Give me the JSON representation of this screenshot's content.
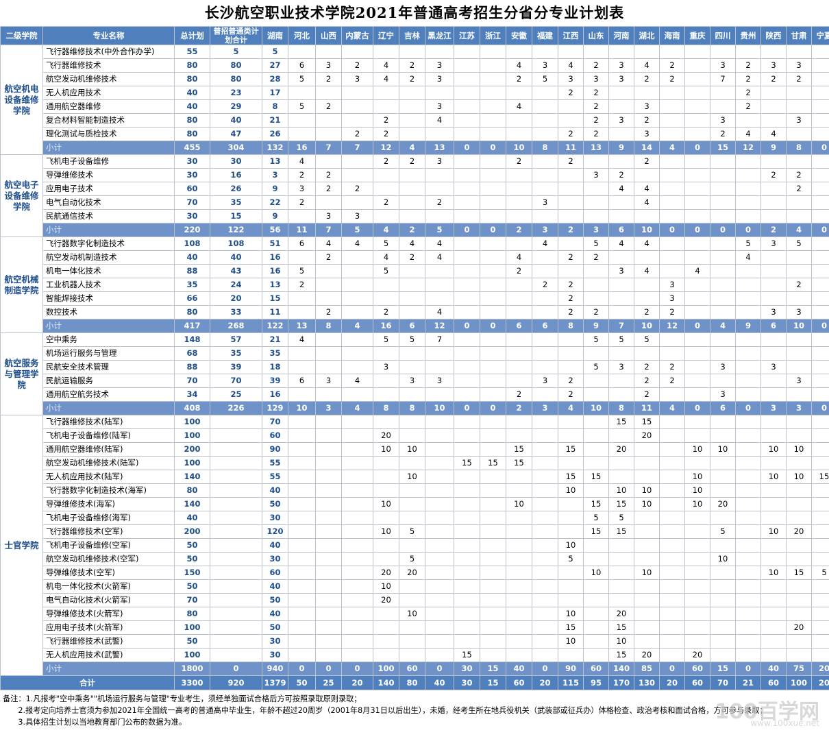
{
  "title": "长沙航空职业技术学院2021年普通高考招生分省分专业计划表",
  "headers": [
    "二级学院",
    "专业名称",
    "总计划",
    "普招普通类计划合计",
    "湖南",
    "河北",
    "山西",
    "内蒙古",
    "辽宁",
    "吉林",
    "黑龙江",
    "江苏",
    "浙江",
    "安徽",
    "福建",
    "江西",
    "山东",
    "河南",
    "湖北",
    "海南",
    "重庆",
    "四川",
    "贵州",
    "陕西",
    "甘肃",
    "宁夏"
  ],
  "groups": [
    {
      "college": "航空机电设备维修学院",
      "rows": [
        [
          "飞行器维修技术(中外合作办学)",
          "55",
          "5",
          "5",
          "",
          "",
          "",
          "",
          "",
          "",
          "",
          "",
          "",
          "",
          "",
          "",
          "",
          "",
          "",
          "",
          "",
          "",
          "",
          "",
          ""
        ],
        [
          "飞行器维修技术",
          "80",
          "80",
          "27",
          "6",
          "3",
          "2",
          "4",
          "2",
          "3",
          "",
          "",
          "4",
          "3",
          "4",
          "2",
          "3",
          "4",
          "2",
          "",
          "3",
          "2",
          "3",
          "3",
          ""
        ],
        [
          "航空发动机维修技术",
          "80",
          "80",
          "28",
          "5",
          "2",
          "3",
          "4",
          "2",
          "3",
          "",
          "",
          "2",
          "5",
          "3",
          "3",
          "3",
          "2",
          "2",
          "",
          "7",
          "2",
          "2",
          "2",
          ""
        ],
        [
          "无人机应用技术",
          "40",
          "23",
          "17",
          "",
          "",
          "",
          "",
          "",
          "",
          "",
          "",
          "",
          "",
          "2",
          "2",
          "",
          "",
          "",
          "",
          "",
          "2",
          "",
          "",
          ""
        ],
        [
          "通用航空器维修",
          "40",
          "29",
          "8",
          "5",
          "2",
          "",
          "",
          "",
          "3",
          "",
          "",
          "4",
          "",
          "",
          "2",
          "",
          "3",
          "",
          "",
          "",
          "2",
          "",
          "",
          ""
        ],
        [
          "复合材料智能制造技术",
          "80",
          "40",
          "21",
          "",
          "",
          "",
          "2",
          "",
          "4",
          "",
          "",
          "",
          "",
          "",
          "2",
          "3",
          "2",
          "",
          "",
          "3",
          "",
          "",
          "3",
          ""
        ],
        [
          "理化测试与质检技术",
          "80",
          "47",
          "26",
          "",
          "",
          "2",
          "2",
          "",
          "",
          "",
          "",
          "",
          "",
          "2",
          "2",
          "",
          "3",
          "",
          "",
          "2",
          "4",
          "4",
          "",
          ""
        ]
      ],
      "subtotal": [
        "小计",
        "455",
        "304",
        "132",
        "16",
        "7",
        "7",
        "12",
        "4",
        "13",
        "0",
        "0",
        "10",
        "8",
        "11",
        "13",
        "9",
        "14",
        "4",
        "0",
        "15",
        "12",
        "9",
        "8",
        "0"
      ]
    },
    {
      "college": "航空电子设备维修学院",
      "rows": [
        [
          "飞机电子设备维修",
          "30",
          "30",
          "13",
          "4",
          "",
          "",
          "2",
          "2",
          "3",
          "",
          "",
          "2",
          "",
          "2",
          "",
          "",
          "2",
          "",
          "",
          "",
          "",
          "",
          "",
          ""
        ],
        [
          "导弹维修技术",
          "30",
          "16",
          "3",
          "2",
          "2",
          "",
          "",
          "",
          "",
          "",
          "",
          "",
          "",
          "",
          "3",
          "2",
          "",
          "",
          "",
          "",
          "",
          "2",
          "2",
          ""
        ],
        [
          "应用电子技术",
          "60",
          "26",
          "9",
          "3",
          "2",
          "2",
          "",
          "",
          "",
          "",
          "",
          "",
          "",
          "",
          "",
          "4",
          "4",
          "",
          "",
          "",
          "",
          "",
          "2",
          ""
        ],
        [
          "电气自动化技术",
          "70",
          "35",
          "22",
          "2",
          "",
          "",
          "2",
          "",
          "2",
          "",
          "",
          "",
          "3",
          "",
          "",
          "",
          "4",
          "",
          "",
          "",
          "",
          "",
          "",
          ""
        ],
        [
          "民航通信技术",
          "30",
          "15",
          "9",
          "",
          "3",
          "3",
          "",
          "",
          "",
          "",
          "",
          "",
          "",
          "",
          "",
          "",
          "",
          "",
          "",
          "",
          "",
          "",
          "",
          ""
        ]
      ],
      "subtotal": [
        "小计",
        "220",
        "122",
        "56",
        "11",
        "7",
        "5",
        "4",
        "2",
        "5",
        "0",
        "0",
        "2",
        "3",
        "2",
        "3",
        "6",
        "10",
        "0",
        "0",
        "0",
        "0",
        "2",
        "4",
        "0"
      ]
    },
    {
      "college": "航空机械制造学院",
      "rows": [
        [
          "飞行器数字化制造技术",
          "108",
          "108",
          "51",
          "6",
          "4",
          "4",
          "5",
          "4",
          "4",
          "",
          "",
          "",
          "4",
          "",
          "5",
          "4",
          "4",
          "",
          "",
          "",
          "5",
          "3",
          "5",
          ""
        ],
        [
          "航空发动机制造技术",
          "40",
          "40",
          "16",
          "",
          "2",
          "",
          "4",
          "2",
          "4",
          "",
          "",
          "4",
          "",
          "2",
          "2",
          "",
          "",
          "",
          "",
          "",
          "4",
          "",
          "",
          ""
        ],
        [
          "机电一体化技术",
          "88",
          "43",
          "16",
          "5",
          "",
          "",
          "5",
          "",
          "",
          "",
          "",
          "2",
          "",
          "",
          "",
          "3",
          "4",
          "",
          "4",
          "",
          "",
          "",
          "",
          ""
        ],
        [
          "工业机器人技术",
          "35",
          "24",
          "13",
          "2",
          "",
          "",
          "",
          "",
          "",
          "",
          "",
          "",
          "2",
          "2",
          "",
          "",
          "",
          "3",
          "",
          "",
          "",
          "",
          "2",
          ""
        ],
        [
          "智能焊接技术",
          "66",
          "20",
          "15",
          "",
          "",
          "",
          "",
          "",
          "",
          "",
          "",
          "",
          "",
          "2",
          "",
          "",
          "",
          "3",
          "",
          "",
          "",
          "",
          "",
          ""
        ],
        [
          "数控技术",
          "80",
          "33",
          "11",
          "",
          "2",
          "",
          "2",
          "",
          "4",
          "",
          "",
          "",
          "",
          "2",
          "2",
          "",
          "2",
          "2",
          "",
          "",
          "",
          "3",
          "3",
          ""
        ]
      ],
      "subtotal": [
        "小计",
        "417",
        "268",
        "122",
        "13",
        "8",
        "4",
        "16",
        "6",
        "12",
        "0",
        "0",
        "6",
        "6",
        "8",
        "9",
        "7",
        "10",
        "12",
        "0",
        "4",
        "9",
        "6",
        "10",
        "0"
      ]
    },
    {
      "college": "航空服务与管理学院",
      "rows": [
        [
          "空中乘务",
          "148",
          "57",
          "21",
          "4",
          "",
          "",
          "5",
          "5",
          "7",
          "",
          "",
          "",
          "",
          "",
          "5",
          "5",
          "5",
          "",
          "",
          "",
          "",
          "",
          "",
          ""
        ],
        [
          "机场运行服务与管理",
          "68",
          "35",
          "35",
          "",
          "",
          "",
          "",
          "",
          "",
          "",
          "",
          "",
          "",
          "",
          "",
          "",
          "",
          "",
          "",
          "",
          "",
          "",
          "",
          ""
        ],
        [
          "民航安全技术管理",
          "88",
          "39",
          "18",
          "",
          "",
          "",
          "3",
          "",
          "",
          "",
          "",
          "",
          "",
          "",
          "5",
          "3",
          "2",
          "2",
          "",
          "3",
          "",
          "3",
          "",
          ""
        ],
        [
          "民航运输服务",
          "70",
          "70",
          "39",
          "6",
          "3",
          "4",
          "",
          "3",
          "3",
          "",
          "",
          "",
          "3",
          "2",
          "",
          "",
          "2",
          "2",
          "",
          "",
          "",
          "",
          "3",
          ""
        ],
        [
          "通用航空航务技术",
          "34",
          "25",
          "16",
          "",
          "",
          "",
          "",
          "",
          "",
          "",
          "",
          "2",
          "",
          "2",
          "",
          "",
          "2",
          "",
          "",
          "3",
          "",
          "",
          "",
          ""
        ]
      ],
      "subtotal": [
        "小计",
        "408",
        "226",
        "129",
        "10",
        "3",
        "4",
        "8",
        "8",
        "10",
        "0",
        "0",
        "2",
        "3",
        "4",
        "10",
        "8",
        "11",
        "4",
        "0",
        "6",
        "0",
        "3",
        "3",
        "0"
      ]
    },
    {
      "college": "士官学院",
      "rows": [
        [
          "飞行器维修技术(陆军)",
          "100",
          "",
          "70",
          "",
          "",
          "",
          "",
          "",
          "",
          "",
          "",
          "",
          "",
          "",
          "",
          "15",
          "15",
          "",
          "",
          "",
          "",
          "",
          "",
          ""
        ],
        [
          "飞机电子设备维修(陆军)",
          "100",
          "",
          "60",
          "",
          "",
          "",
          "20",
          "",
          "",
          "",
          "",
          "",
          "",
          "",
          "",
          "",
          "20",
          "",
          "",
          "",
          "",
          "",
          "",
          ""
        ],
        [
          "通用航空器维修(陆军)",
          "200",
          "",
          "90",
          "",
          "",
          "",
          "10",
          "10",
          "",
          "",
          "",
          "15",
          "",
          "15",
          "",
          "20",
          "",
          "",
          "10",
          "10",
          "",
          "10",
          "10",
          ""
        ],
        [
          "航空发动机维修技术(陆军)",
          "100",
          "",
          "55",
          "",
          "",
          "",
          "",
          "",
          "",
          "15",
          "15",
          "15",
          "",
          "",
          "",
          "",
          "",
          "",
          "",
          "",
          "",
          "",
          "",
          ""
        ],
        [
          "无人机应用技术(陆军)",
          "140",
          "",
          "55",
          "",
          "",
          "",
          "",
          "10",
          "",
          "",
          "",
          "",
          "",
          "15",
          "15",
          "",
          "",
          "",
          "10",
          "",
          "",
          "10",
          "10",
          "15"
        ],
        [
          "飞行器数字化制造技术(海军)",
          "80",
          "",
          "40",
          "",
          "",
          "",
          "",
          "",
          "",
          "",
          "",
          "",
          "",
          "10",
          "",
          "10",
          "10",
          "",
          "10",
          "",
          "",
          "",
          "",
          ""
        ],
        [
          "导弹维修技术(海军)",
          "140",
          "",
          "50",
          "",
          "",
          "",
          "10",
          "",
          "",
          "",
          "",
          "10",
          "",
          "",
          "15",
          "15",
          "10",
          "",
          "10",
          "20",
          "",
          "",
          "",
          ""
        ],
        [
          "飞机电子设备维修(海军)",
          "40",
          "",
          "30",
          "",
          "",
          "",
          "",
          "",
          "",
          "",
          "",
          "",
          "",
          "",
          "5",
          "5",
          "",
          "",
          "",
          "",
          "",
          "",
          "",
          ""
        ],
        [
          "飞行器维修技术(空军)",
          "200",
          "",
          "120",
          "",
          "",
          "",
          "10",
          "5",
          "",
          "",
          "",
          "",
          "",
          "",
          "15",
          "15",
          "",
          "",
          "",
          "5",
          "",
          "10",
          "20",
          ""
        ],
        [
          "飞机电子设备维修(空军)",
          "50",
          "",
          "40",
          "",
          "",
          "",
          "",
          "",
          "",
          "",
          "",
          "",
          "",
          "10",
          "",
          "",
          "",
          "",
          "",
          "",
          "",
          "",
          "",
          ""
        ],
        [
          "航空发动机维修技术(空军)",
          "50",
          "",
          "30",
          "",
          "",
          "",
          "",
          "5",
          "",
          "",
          "",
          "",
          "",
          "5",
          "",
          "",
          "",
          "",
          "",
          "10",
          "",
          "",
          "",
          ""
        ],
        [
          "导弹维修技术(空军)",
          "150",
          "",
          "60",
          "",
          "",
          "",
          "20",
          "20",
          "",
          "",
          "",
          "",
          "",
          "",
          "10",
          "",
          "10",
          "",
          "",
          "",
          "",
          "10",
          "15",
          "5"
        ],
        [
          "机电一体化技术(火箭军)",
          "50",
          "",
          "40",
          "",
          "",
          "",
          "10",
          "",
          "",
          "",
          "",
          "",
          "",
          "",
          "",
          "",
          "",
          "",
          "",
          "",
          "",
          "",
          "",
          ""
        ],
        [
          "电气自动化技术(火箭军)",
          "70",
          "",
          "50",
          "",
          "",
          "",
          "20",
          "",
          "",
          "",
          "",
          "",
          "",
          "",
          "",
          "",
          "",
          "",
          "",
          "",
          "",
          "",
          "",
          ""
        ],
        [
          "导弹维修技术(火箭军)",
          "80",
          "",
          "40",
          "",
          "",
          "",
          "",
          "10",
          "",
          "",
          "",
          "",
          "",
          "10",
          "",
          "20",
          "",
          "",
          "",
          "",
          "",
          "",
          "",
          ""
        ],
        [
          "应用电子技术(火箭军)",
          "100",
          "",
          "50",
          "",
          "",
          "",
          "",
          "",
          "",
          "",
          "",
          "",
          "",
          "15",
          "",
          "15",
          "",
          "",
          "",
          "",
          "",
          "",
          "20",
          ""
        ],
        [
          "飞行器维修技术(武警)",
          "50",
          "",
          "30",
          "",
          "",
          "",
          "",
          "",
          "",
          "",
          "",
          "",
          "",
          "10",
          "",
          "10",
          "",
          "",
          "",
          "",
          "",
          "",
          "",
          ""
        ],
        [
          "无人机应用技术(武警)",
          "100",
          "",
          "30",
          "",
          "",
          "",
          "",
          "",
          "",
          "15",
          "",
          "",
          "",
          "",
          "",
          "15",
          "20",
          "",
          "20",
          "",
          "",
          "",
          "",
          ""
        ]
      ],
      "subtotal": [
        "小计",
        "1800",
        "0",
        "940",
        "0",
        "0",
        "0",
        "100",
        "60",
        "0",
        "30",
        "15",
        "40",
        "0",
        "90",
        "60",
        "140",
        "85",
        "0",
        "60",
        "15",
        "0",
        "40",
        "75",
        "20"
      ]
    }
  ],
  "grand_total": [
    "合计",
    "3300",
    "920",
    "1379",
    "50",
    "25",
    "20",
    "140",
    "80",
    "40",
    "30",
    "15",
    "60",
    "20",
    "115",
    "95",
    "170",
    "130",
    "20",
    "60",
    "70",
    "21",
    "60",
    "100",
    "20"
  ],
  "notes": [
    "备注：1.凡报考\"空中乘务\"\"机场运行服务与管理\"专业考生，须经单独面试合格后方可按照录取原则录取；",
    "2.报考定向培养士官须为参加2021年全国统一高考的普通高中毕业生，年龄不超过20周岁（2001年8月31日以后出生），未婚，经考生所在地兵役机关（武装部或征兵办）体格检查、政治考核和面试合格，方可参与录取；",
    "3.具体招生计划以当地教育部门公布的数据为准。"
  ],
  "watermark": {
    "logo": "100百学网",
    "url": "www.100xue.net"
  }
}
